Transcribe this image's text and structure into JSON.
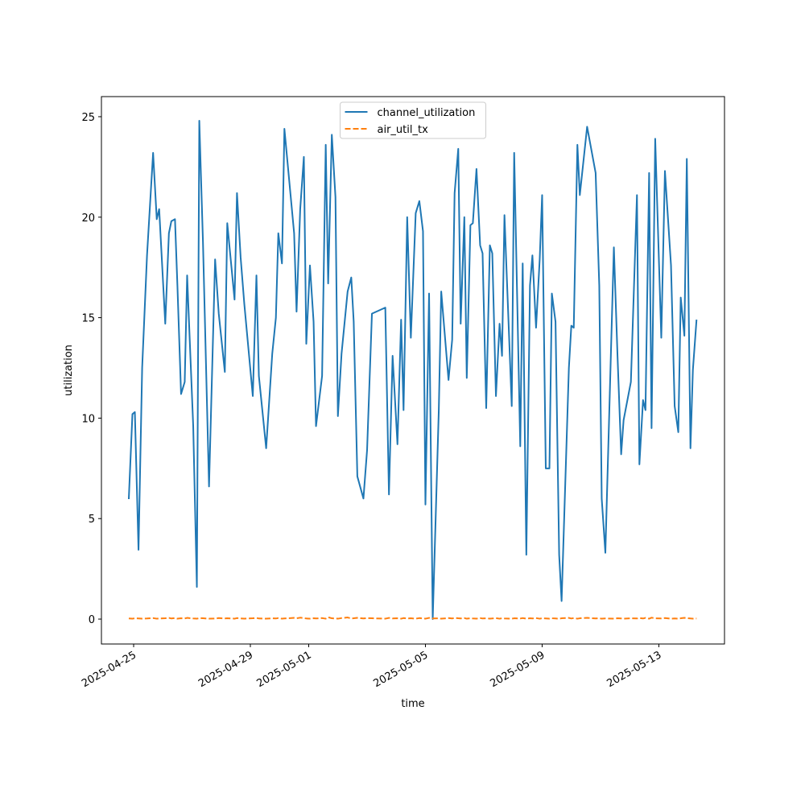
{
  "chart_data": {
    "type": "line",
    "xlabel": "time",
    "ylabel": "utilization",
    "x": [
      "2025-04-24 20:00",
      "2025-04-24 23:00",
      "2025-04-25 01:00",
      "2025-04-25 04:00",
      "2025-04-25 07:00",
      "2025-04-25 11:00",
      "2025-04-25 16:00",
      "2025-04-25 19:00",
      "2025-04-25 21:00",
      "2025-04-26 02:00",
      "2025-04-26 05:00",
      "2025-04-26 07:00",
      "2025-04-26 10:00",
      "2025-04-26 12:00",
      "2025-04-26 15:00",
      "2025-04-26 18:00",
      "2025-04-26 20:00",
      "2025-04-27 01:00",
      "2025-04-27 04:00",
      "2025-04-27 06:00",
      "2025-04-27 09:00",
      "2025-04-27 14:00",
      "2025-04-27 19:00",
      "2025-04-27 22:00",
      "2025-04-28 03:00",
      "2025-04-28 05:00",
      "2025-04-28 11:00",
      "2025-04-28 13:00",
      "2025-04-28 16:00",
      "2025-04-28 19:00",
      "2025-04-29 02:00",
      "2025-04-29 05:00",
      "2025-04-29 07:00",
      "2025-04-29 13:00",
      "2025-04-29 18:00",
      "2025-04-29 21:00",
      "2025-04-29 23:00",
      "2025-04-30 02:00",
      "2025-04-30 04:00",
      "2025-04-30 12:00",
      "2025-04-30 14:00",
      "2025-04-30 17:00",
      "2025-04-30 20:00",
      "2025-04-30 22:00",
      "2025-05-01 01:00",
      "2025-05-01 04:00",
      "2025-05-01 06:00",
      "2025-05-01 11:00",
      "2025-05-01 14:00",
      "2025-05-01 16:00",
      "2025-05-01 19:00",
      "2025-05-01 22:00",
      "2025-05-02 00:00",
      "2025-05-02 03:00",
      "2025-05-02 08:00",
      "2025-05-02 11:00",
      "2025-05-02 13:00",
      "2025-05-02 16:00",
      "2025-05-02 21:00",
      "2025-05-03 00:00",
      "2025-05-03 04:00",
      "2025-05-03 15:00",
      "2025-05-03 18:00",
      "2025-05-03 21:00",
      "2025-05-04 01:00",
      "2025-05-04 04:00",
      "2025-05-04 06:00",
      "2025-05-04 09:00",
      "2025-05-04 12:00",
      "2025-05-04 16:00",
      "2025-05-04 19:00",
      "2025-05-04 22:00",
      "2025-05-05 00:00",
      "2025-05-05 03:00",
      "2025-05-05 06:00",
      "2025-05-05 11:00",
      "2025-05-05 13:00",
      "2025-05-05 19:00",
      "2025-05-05 22:00",
      "2025-05-06 00:00",
      "2025-05-06 03:00",
      "2025-05-06 05:00",
      "2025-05-06 08:00",
      "2025-05-06 10:00",
      "2025-05-06 13:00",
      "2025-05-06 15:00",
      "2025-05-06 18:00",
      "2025-05-06 21:00",
      "2025-05-06 23:00",
      "2025-05-07 02:00",
      "2025-05-07 05:00",
      "2025-05-07 07:00",
      "2025-05-07 10:00",
      "2025-05-07 13:00",
      "2025-05-07 15:00",
      "2025-05-07 17:00",
      "2025-05-07 23:00",
      "2025-05-08 01:00",
      "2025-05-08 06:00",
      "2025-05-08 08:00",
      "2025-05-08 11:00",
      "2025-05-08 14:00",
      "2025-05-08 16:00",
      "2025-05-08 19:00",
      "2025-05-08 22:00",
      "2025-05-09 00:00",
      "2025-05-09 03:00",
      "2025-05-09 06:00",
      "2025-05-09 08:00",
      "2025-05-09 11:00",
      "2025-05-09 14:00",
      "2025-05-09 16:00",
      "2025-05-09 22:00",
      "2025-05-10 00:00",
      "2025-05-10 02:00",
      "2025-05-10 05:00",
      "2025-05-10 07:00",
      "2025-05-10 13:00",
      "2025-05-10 20:00",
      "2025-05-10 23:00",
      "2025-05-11 01:00",
      "2025-05-11 04:00",
      "2025-05-11 11:00",
      "2025-05-11 14:00",
      "2025-05-11 17:00",
      "2025-05-11 19:00",
      "2025-05-12 01:00",
      "2025-05-12 06:00",
      "2025-05-12 08:00",
      "2025-05-12 11:00",
      "2025-05-12 13:00",
      "2025-05-12 16:00",
      "2025-05-12 18:00",
      "2025-05-12 21:00",
      "2025-05-13 02:00",
      "2025-05-13 05:00",
      "2025-05-13 10:00",
      "2025-05-13 13:00",
      "2025-05-13 16:00",
      "2025-05-13 18:00",
      "2025-05-13 21:00",
      "2025-05-13 23:00",
      "2025-05-14 02:00",
      "2025-05-14 04:00",
      "2025-05-14 07:00"
    ],
    "series": [
      {
        "name": "channel_utilization",
        "color": "#1f77b4",
        "dash": "solid",
        "values": [
          5.97,
          10.2,
          10.3,
          3.45,
          12.5,
          18.1,
          23.2,
          19.9,
          20.4,
          14.7,
          19.2,
          19.8,
          19.9,
          16.6,
          11.2,
          11.8,
          17.1,
          9.6,
          1.6,
          24.8,
          18.8,
          6.6,
          17.9,
          15.2,
          12.3,
          19.7,
          15.9,
          21.2,
          18.0,
          15.7,
          11.1,
          17.1,
          12.1,
          8.5,
          13.2,
          15.0,
          19.2,
          17.7,
          24.4,
          19.2,
          15.3,
          20.4,
          23.0,
          13.7,
          17.6,
          14.8,
          9.6,
          12.1,
          23.6,
          16.7,
          24.1,
          21.0,
          10.1,
          13.2,
          16.3,
          17.0,
          14.8,
          7.1,
          6.0,
          8.4,
          15.2,
          15.5,
          6.2,
          13.1,
          8.7,
          14.9,
          10.4,
          20.0,
          14.0,
          20.2,
          20.8,
          19.3,
          5.7,
          16.2,
          0.0,
          10.4,
          16.3,
          11.9,
          13.9,
          21.2,
          23.4,
          14.7,
          20.0,
          12.0,
          19.6,
          19.7,
          22.4,
          18.6,
          18.2,
          10.5,
          18.6,
          18.2,
          11.1,
          14.7,
          13.1,
          20.1,
          10.6,
          23.2,
          8.6,
          17.7,
          3.2,
          16.6,
          18.1,
          14.5,
          17.9,
          21.1,
          7.5,
          7.5,
          16.2,
          14.8,
          3.2,
          0.9,
          12.5,
          14.6,
          14.5,
          23.6,
          21.1,
          24.5,
          22.2,
          16.6,
          6.0,
          3.3,
          18.5,
          13.1,
          8.2,
          9.9,
          11.8,
          21.1,
          7.7,
          10.9,
          10.4,
          22.2,
          9.5,
          23.9,
          14.0,
          22.3,
          17.6,
          10.6,
          9.3,
          16.0,
          14.1,
          22.9,
          8.5,
          12.4,
          14.9
        ]
      },
      {
        "name": "air_util_tx",
        "color": "#ff7f0e",
        "dash": "dashed",
        "values": [
          0.03,
          0.02,
          0.04,
          0.03,
          0.02,
          0.03,
          0.05,
          0.02,
          0.03,
          0.04,
          0.06,
          0.03,
          0.05,
          0.02,
          0.04,
          0.03,
          0.06,
          0.03,
          0.02,
          0.05,
          0.04,
          0.02,
          0.03,
          0.05,
          0.03,
          0.04,
          0.02,
          0.05,
          0.03,
          0.02,
          0.04,
          0.06,
          0.03,
          0.02,
          0.04,
          0.03,
          0.05,
          0.02,
          0.03,
          0.06,
          0.04,
          0.07,
          0.05,
          0.03,
          0.02,
          0.04,
          0.03,
          0.05,
          0.02,
          0.09,
          0.04,
          0.03,
          0.02,
          0.05,
          0.08,
          0.03,
          0.04,
          0.06,
          0.03,
          0.05,
          0.04,
          0.02,
          0.06,
          0.03,
          0.04,
          0.02,
          0.05,
          0.03,
          0.04,
          0.02,
          0.05,
          0.03,
          0.02,
          0.06,
          0.03,
          0.04,
          0.02,
          0.05,
          0.03,
          0.06,
          0.04,
          0.03,
          0.05,
          0.02,
          0.04,
          0.03,
          0.02,
          0.05,
          0.03,
          0.04,
          0.02,
          0.03,
          0.05,
          0.02,
          0.04,
          0.03,
          0.02,
          0.04,
          0.03,
          0.05,
          0.02,
          0.04,
          0.03,
          0.05,
          0.02,
          0.04,
          0.03,
          0.02,
          0.04,
          0.03,
          0.02,
          0.04,
          0.06,
          0.03,
          0.05,
          0.02,
          0.04,
          0.06,
          0.03,
          0.04,
          0.02,
          0.03,
          0.02,
          0.04,
          0.03,
          0.02,
          0.04,
          0.03,
          0.05,
          0.03,
          0.06,
          0.02,
          0.07,
          0.04,
          0.03,
          0.05,
          0.02,
          0.03,
          0.02,
          0.04,
          0.06,
          0.05,
          0.03,
          0.02,
          0.03
        ]
      }
    ],
    "xlim": [
      "2025-04-23 21:30",
      "2025-05-15 06:00"
    ],
    "xticks": [
      "2025-04-25",
      "2025-04-29",
      "2025-05-01",
      "2025-05-05",
      "2025-05-09",
      "2025-05-13"
    ],
    "ylim": [
      -1.24,
      26.0
    ],
    "yticks": [
      0,
      5,
      10,
      15,
      20,
      25
    ],
    "legend": "upper center"
  }
}
